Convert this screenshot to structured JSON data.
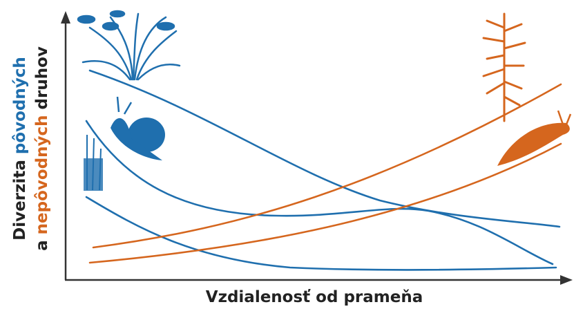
{
  "y_axis": {
    "line1": [
      "Diverzita",
      "pôvodných"
    ],
    "line2": [
      "a",
      "nepôvodných",
      "druhov"
    ]
  },
  "x_axis": {
    "label": "Vzdialenosť od prameňa"
  }
}
